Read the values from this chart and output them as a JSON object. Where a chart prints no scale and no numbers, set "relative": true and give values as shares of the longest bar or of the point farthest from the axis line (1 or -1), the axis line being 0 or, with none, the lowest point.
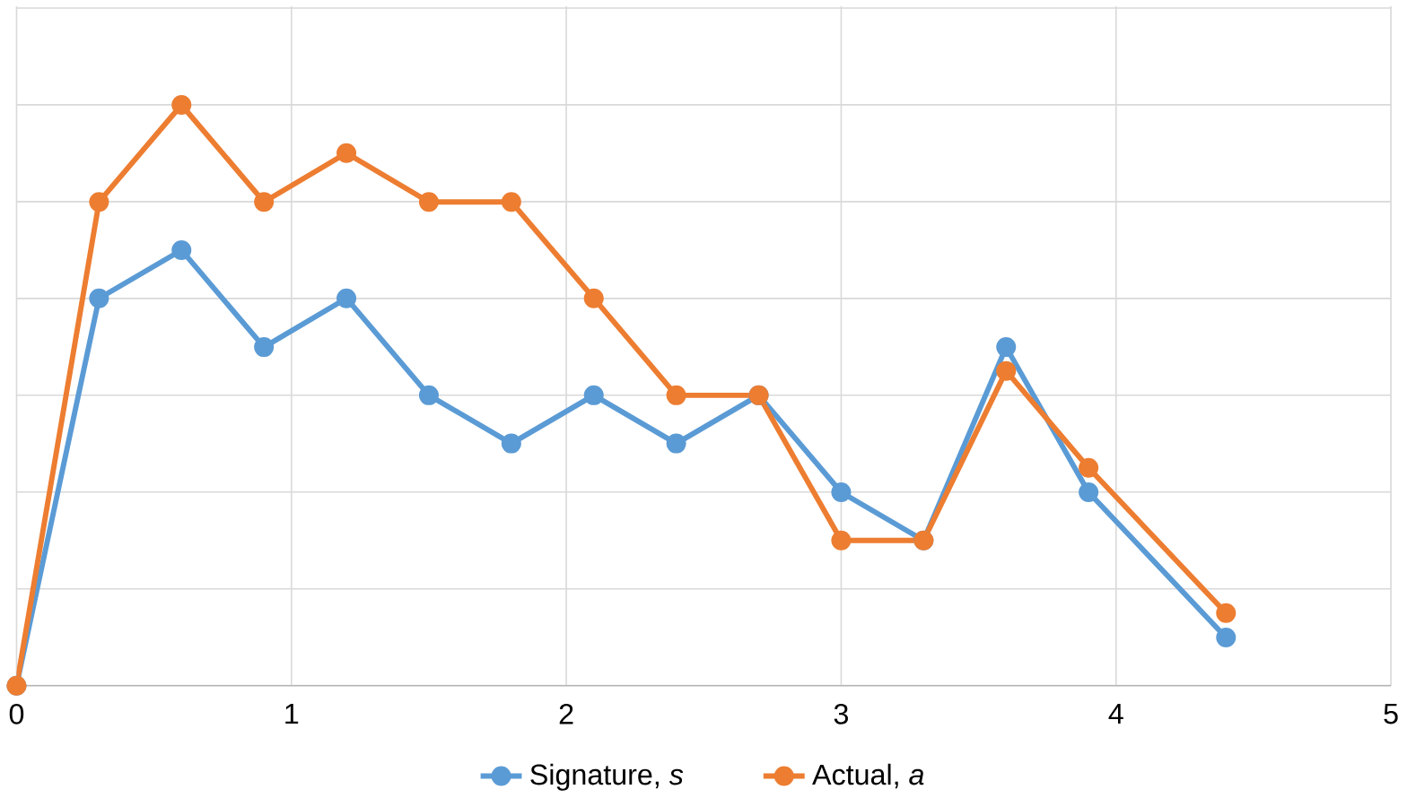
{
  "chart_data": {
    "type": "line",
    "relative": true,
    "x": [
      0,
      0.3,
      0.6,
      0.9,
      1.2,
      1.5,
      1.8,
      2.1,
      2.4,
      2.7,
      3.0,
      3.3,
      3.6,
      3.9,
      4.4
    ],
    "xlim": [
      0,
      5
    ],
    "xticks": [
      0,
      1,
      2,
      3,
      4,
      5
    ],
    "grid": true,
    "legend": "bottom",
    "marker": "circle",
    "line_style": "solid",
    "series": [
      {
        "name": "Signature, *s*",
        "color": "#5b9bd5",
        "values": [
          0,
          0.667,
          0.75,
          0.583,
          0.667,
          0.5,
          0.417,
          0.5,
          0.417,
          0.5,
          0.333,
          0.25,
          0.583,
          0.333,
          0.083
        ]
      },
      {
        "name": "Actual, *a*",
        "color": "#ed7d31",
        "values": [
          0,
          0.833,
          1,
          0.833,
          0.917,
          0.833,
          0.833,
          0.667,
          0.5,
          0.5,
          0.25,
          0.25,
          0.542,
          0.375,
          0.125
        ]
      }
    ]
  }
}
